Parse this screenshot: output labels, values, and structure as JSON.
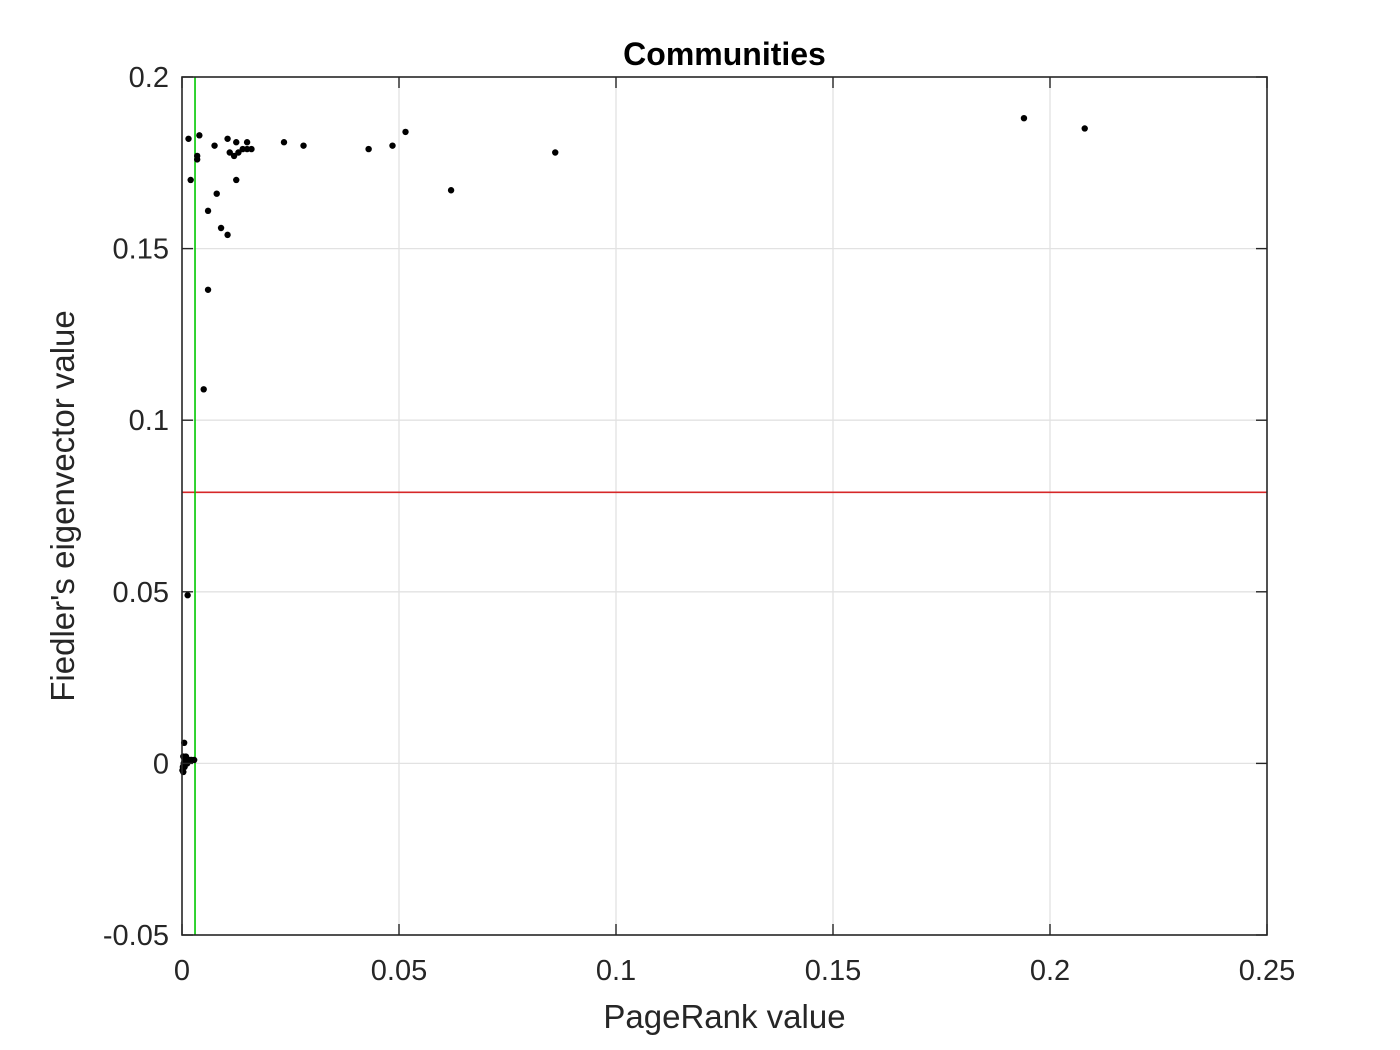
{
  "chart_data": {
    "type": "scatter",
    "title": "Communities",
    "xlabel": "PageRank value",
    "ylabel": "Fiedler's eigenvector value",
    "xlim": [
      0,
      0.25
    ],
    "ylim": [
      -0.05,
      0.2
    ],
    "xticks": [
      0,
      0.05,
      0.1,
      0.15,
      0.2,
      0.25
    ],
    "xtick_labels": [
      "0",
      "0.05",
      "0.1",
      "0.15",
      "0.2",
      "0.25"
    ],
    "yticks": [
      -0.05,
      0,
      0.05,
      0.1,
      0.15,
      0.2
    ],
    "ytick_labels": [
      "-0.05",
      "0",
      "0.05",
      "0.1",
      "0.15",
      "0.2"
    ],
    "grid": true,
    "colors": {
      "points": "#000000",
      "horizontal_line": "#d62728",
      "vertical_line": "#00c800",
      "grid": "#e2e2e2",
      "axes": "#262626"
    },
    "reference_lines": {
      "horizontal_y": 0.079,
      "vertical_x": 0.003
    },
    "series": [
      {
        "points": [
          [
            0.0015,
            0.182
          ],
          [
            0.004,
            0.183
          ],
          [
            0.002,
            0.17
          ],
          [
            0.0035,
            0.177
          ],
          [
            0.0035,
            0.176
          ],
          [
            0.0075,
            0.18
          ],
          [
            0.0105,
            0.182
          ],
          [
            0.0125,
            0.181
          ],
          [
            0.015,
            0.181
          ],
          [
            0.011,
            0.178
          ],
          [
            0.012,
            0.177
          ],
          [
            0.013,
            0.178
          ],
          [
            0.014,
            0.179
          ],
          [
            0.015,
            0.179
          ],
          [
            0.016,
            0.179
          ],
          [
            0.0125,
            0.17
          ],
          [
            0.008,
            0.166
          ],
          [
            0.006,
            0.161
          ],
          [
            0.009,
            0.156
          ],
          [
            0.0105,
            0.154
          ],
          [
            0.006,
            0.138
          ],
          [
            0.005,
            0.109
          ],
          [
            0.0235,
            0.181
          ],
          [
            0.028,
            0.18
          ],
          [
            0.043,
            0.179
          ],
          [
            0.0485,
            0.18
          ],
          [
            0.0515,
            0.184
          ],
          [
            0.062,
            0.167
          ],
          [
            0.086,
            0.178
          ],
          [
            0.194,
            0.188
          ],
          [
            0.208,
            0.185
          ],
          [
            0.0013,
            0.049
          ],
          [
            0.0005,
            0.006
          ],
          [
            0.0003,
            0.002
          ],
          [
            0.0008,
            0.001
          ],
          [
            0.0012,
            0.0
          ],
          [
            0.0018,
            0.001
          ],
          [
            0.0022,
            0.001
          ],
          [
            0.0028,
            0.001
          ],
          [
            0.0002,
            -0.001
          ],
          [
            0.0001,
            -0.002
          ],
          [
            0.0004,
            0.0
          ],
          [
            0.0006,
            -0.001
          ],
          [
            0.0009,
            0.002
          ],
          [
            0.0015,
            0.001
          ],
          [
            0.0003,
            -0.0025
          ]
        ]
      }
    ]
  }
}
